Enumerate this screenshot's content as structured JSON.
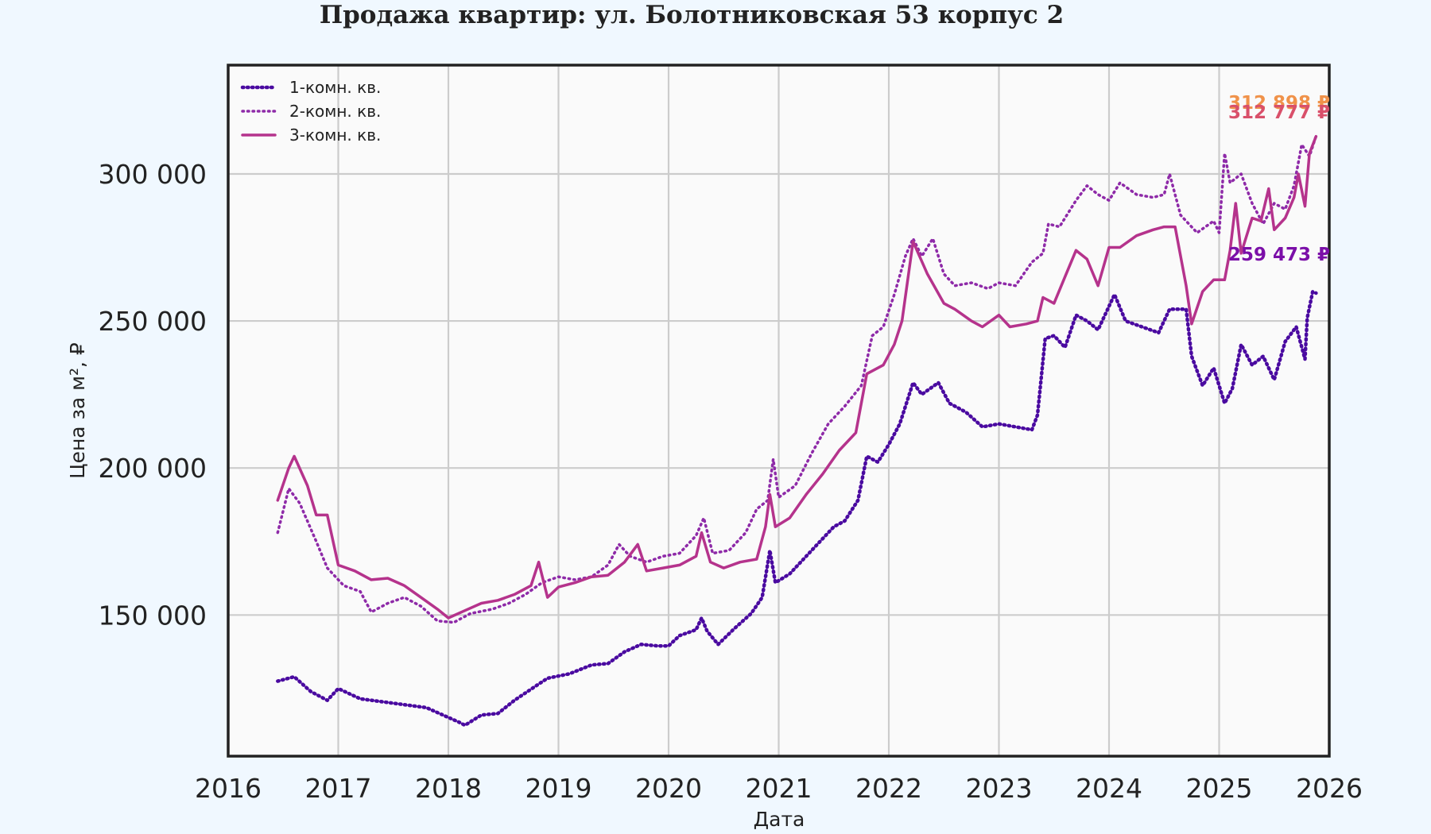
{
  "chart_data": {
    "type": "line",
    "title": "Продажа квартир: ул. Болотниковская 53 корпус 2",
    "xlabel": "Дата",
    "ylabel": "Цена за м², ₽",
    "xlim": [
      2016,
      2026
    ],
    "ylim": [
      102000,
      337000
    ],
    "x_ticks": [
      "2016",
      "2017",
      "2018",
      "2019",
      "2020",
      "2021",
      "2022",
      "2023",
      "2024",
      "2025",
      "2026"
    ],
    "y_ticks": [
      {
        "value": 150000,
        "label": "150 000"
      },
      {
        "value": 200000,
        "label": "200 000"
      },
      {
        "value": 250000,
        "label": "250 000"
      },
      {
        "value": 300000,
        "label": "300 000"
      }
    ],
    "grid": true,
    "legend_position": "top-left",
    "series": [
      {
        "name": "1-комн. кв.",
        "color": "#4a0aa0",
        "style": "dotted-markers",
        "end_label": "259 473 ₽",
        "points": [
          [
            2016.45,
            127500
          ],
          [
            2016.6,
            129000
          ],
          [
            2016.75,
            124000
          ],
          [
            2016.9,
            121000
          ],
          [
            2017.0,
            125000
          ],
          [
            2017.2,
            121500
          ],
          [
            2017.4,
            120500
          ],
          [
            2017.6,
            119500
          ],
          [
            2017.8,
            118500
          ],
          [
            2017.95,
            116000
          ],
          [
            2018.1,
            113500
          ],
          [
            2018.15,
            112500
          ],
          [
            2018.3,
            116000
          ],
          [
            2018.45,
            116500
          ],
          [
            2018.6,
            121000
          ],
          [
            2018.8,
            126000
          ],
          [
            2018.9,
            128500
          ],
          [
            2019.1,
            130000
          ],
          [
            2019.3,
            133000
          ],
          [
            2019.45,
            133500
          ],
          [
            2019.6,
            137500
          ],
          [
            2019.75,
            140000
          ],
          [
            2019.9,
            139500
          ],
          [
            2020.0,
            139500
          ],
          [
            2020.1,
            143000
          ],
          [
            2020.25,
            145000
          ],
          [
            2020.3,
            149000
          ],
          [
            2020.35,
            144500
          ],
          [
            2020.45,
            140000
          ],
          [
            2020.6,
            145500
          ],
          [
            2020.75,
            150500
          ],
          [
            2020.85,
            156000
          ],
          [
            2020.92,
            172000
          ],
          [
            2020.97,
            161000
          ],
          [
            2021.1,
            164000
          ],
          [
            2021.25,
            170000
          ],
          [
            2021.35,
            174000
          ],
          [
            2021.5,
            180000
          ],
          [
            2021.6,
            182000
          ],
          [
            2021.72,
            189000
          ],
          [
            2021.8,
            204000
          ],
          [
            2021.9,
            202000
          ],
          [
            2022.0,
            208000
          ],
          [
            2022.1,
            215000
          ],
          [
            2022.22,
            229000
          ],
          [
            2022.3,
            225000
          ],
          [
            2022.45,
            229000
          ],
          [
            2022.55,
            222000
          ],
          [
            2022.7,
            219000
          ],
          [
            2022.85,
            214000
          ],
          [
            2023.0,
            215000
          ],
          [
            2023.15,
            214000
          ],
          [
            2023.3,
            213000
          ],
          [
            2023.35,
            218000
          ],
          [
            2023.42,
            244000
          ],
          [
            2023.5,
            245000
          ],
          [
            2023.6,
            241000
          ],
          [
            2023.7,
            252000
          ],
          [
            2023.8,
            250000
          ],
          [
            2023.9,
            247000
          ],
          [
            2024.05,
            259000
          ],
          [
            2024.15,
            250000
          ],
          [
            2024.3,
            248000
          ],
          [
            2024.45,
            246000
          ],
          [
            2024.55,
            254000
          ],
          [
            2024.7,
            254000
          ],
          [
            2024.75,
            238000
          ],
          [
            2024.85,
            228000
          ],
          [
            2024.95,
            234000
          ],
          [
            2025.05,
            222000
          ],
          [
            2025.12,
            227000
          ],
          [
            2025.2,
            242000
          ],
          [
            2025.3,
            235000
          ],
          [
            2025.4,
            238000
          ],
          [
            2025.5,
            230000
          ],
          [
            2025.6,
            243000
          ],
          [
            2025.7,
            248000
          ],
          [
            2025.78,
            237000
          ],
          [
            2025.8,
            251000
          ],
          [
            2025.85,
            260000
          ],
          [
            2025.88,
            259473
          ]
        ]
      },
      {
        "name": "2-комн. кв.",
        "color": "#8e2aa8",
        "style": "dotted",
        "end_label": "312 898 ₽",
        "points": [
          [
            2016.45,
            178000
          ],
          [
            2016.55,
            193000
          ],
          [
            2016.65,
            188000
          ],
          [
            2016.8,
            175000
          ],
          [
            2016.9,
            166000
          ],
          [
            2017.05,
            160000
          ],
          [
            2017.2,
            158000
          ],
          [
            2017.3,
            151000
          ],
          [
            2017.45,
            154000
          ],
          [
            2017.6,
            156000
          ],
          [
            2017.75,
            153000
          ],
          [
            2017.9,
            148000
          ],
          [
            2018.05,
            147500
          ],
          [
            2018.2,
            150500
          ],
          [
            2018.4,
            152000
          ],
          [
            2018.55,
            154000
          ],
          [
            2018.7,
            157000
          ],
          [
            2018.85,
            161000
          ],
          [
            2019.0,
            163000
          ],
          [
            2019.15,
            162000
          ],
          [
            2019.3,
            163000
          ],
          [
            2019.45,
            167000
          ],
          [
            2019.55,
            174000
          ],
          [
            2019.65,
            170000
          ],
          [
            2019.8,
            168000
          ],
          [
            2019.95,
            170000
          ],
          [
            2020.1,
            171000
          ],
          [
            2020.25,
            177000
          ],
          [
            2020.32,
            183000
          ],
          [
            2020.4,
            171000
          ],
          [
            2020.55,
            172000
          ],
          [
            2020.7,
            178000
          ],
          [
            2020.8,
            186000
          ],
          [
            2020.9,
            189000
          ],
          [
            2020.95,
            203000
          ],
          [
            2021.0,
            190000
          ],
          [
            2021.15,
            194000
          ],
          [
            2021.3,
            205000
          ],
          [
            2021.45,
            215000
          ],
          [
            2021.6,
            221000
          ],
          [
            2021.75,
            228000
          ],
          [
            2021.85,
            245000
          ],
          [
            2021.95,
            248000
          ],
          [
            2022.05,
            259000
          ],
          [
            2022.15,
            272000
          ],
          [
            2022.22,
            278000
          ],
          [
            2022.3,
            272000
          ],
          [
            2022.4,
            278000
          ],
          [
            2022.5,
            266000
          ],
          [
            2022.6,
            262000
          ],
          [
            2022.75,
            263000
          ],
          [
            2022.9,
            261000
          ],
          [
            2023.0,
            263000
          ],
          [
            2023.15,
            262000
          ],
          [
            2023.3,
            270000
          ],
          [
            2023.4,
            273000
          ],
          [
            2023.45,
            283000
          ],
          [
            2023.55,
            282000
          ],
          [
            2023.7,
            291000
          ],
          [
            2023.8,
            296000
          ],
          [
            2023.9,
            293000
          ],
          [
            2024.0,
            291000
          ],
          [
            2024.1,
            297000
          ],
          [
            2024.25,
            293000
          ],
          [
            2024.4,
            292000
          ],
          [
            2024.5,
            293000
          ],
          [
            2024.55,
            300000
          ],
          [
            2024.65,
            286000
          ],
          [
            2024.8,
            280000
          ],
          [
            2024.95,
            284000
          ],
          [
            2025.0,
            280000
          ],
          [
            2025.05,
            307000
          ],
          [
            2025.1,
            297000
          ],
          [
            2025.2,
            300000
          ],
          [
            2025.3,
            290000
          ],
          [
            2025.4,
            283000
          ],
          [
            2025.5,
            290000
          ],
          [
            2025.6,
            288000
          ],
          [
            2025.68,
            296000
          ],
          [
            2025.75,
            310000
          ],
          [
            2025.82,
            306000
          ],
          [
            2025.88,
            312898
          ]
        ]
      },
      {
        "name": "3-комн. кв.",
        "color": "#b5338c",
        "style": "solid",
        "end_label": "312 777 ₽",
        "points": [
          [
            2016.45,
            189000
          ],
          [
            2016.55,
            200000
          ],
          [
            2016.6,
            204000
          ],
          [
            2016.72,
            194000
          ],
          [
            2016.8,
            184000
          ],
          [
            2016.9,
            184000
          ],
          [
            2017.0,
            167000
          ],
          [
            2017.15,
            165000
          ],
          [
            2017.3,
            162000
          ],
          [
            2017.45,
            162500
          ],
          [
            2017.6,
            160000
          ],
          [
            2017.75,
            156000
          ],
          [
            2017.9,
            152000
          ],
          [
            2018.0,
            149000
          ],
          [
            2018.15,
            151500
          ],
          [
            2018.3,
            154000
          ],
          [
            2018.45,
            155000
          ],
          [
            2018.6,
            157000
          ],
          [
            2018.75,
            160000
          ],
          [
            2018.82,
            168000
          ],
          [
            2018.9,
            156000
          ],
          [
            2019.0,
            159500
          ],
          [
            2019.15,
            161000
          ],
          [
            2019.3,
            163000
          ],
          [
            2019.45,
            163500
          ],
          [
            2019.6,
            168000
          ],
          [
            2019.72,
            174000
          ],
          [
            2019.8,
            165000
          ],
          [
            2019.95,
            166000
          ],
          [
            2020.1,
            167000
          ],
          [
            2020.25,
            170000
          ],
          [
            2020.3,
            178000
          ],
          [
            2020.38,
            168000
          ],
          [
            2020.5,
            166000
          ],
          [
            2020.65,
            168000
          ],
          [
            2020.8,
            169000
          ],
          [
            2020.88,
            180000
          ],
          [
            2020.92,
            191000
          ],
          [
            2020.97,
            180000
          ],
          [
            2021.1,
            183000
          ],
          [
            2021.25,
            191000
          ],
          [
            2021.4,
            198000
          ],
          [
            2021.55,
            206000
          ],
          [
            2021.7,
            212000
          ],
          [
            2021.8,
            232000
          ],
          [
            2021.95,
            235000
          ],
          [
            2022.05,
            242000
          ],
          [
            2022.12,
            250000
          ],
          [
            2022.22,
            277000
          ],
          [
            2022.35,
            266000
          ],
          [
            2022.5,
            256000
          ],
          [
            2022.6,
            254000
          ],
          [
            2022.75,
            250000
          ],
          [
            2022.85,
            248000
          ],
          [
            2023.0,
            252000
          ],
          [
            2023.1,
            248000
          ],
          [
            2023.25,
            249000
          ],
          [
            2023.35,
            250000
          ],
          [
            2023.4,
            258000
          ],
          [
            2023.5,
            256000
          ],
          [
            2023.6,
            265000
          ],
          [
            2023.7,
            274000
          ],
          [
            2023.8,
            271000
          ],
          [
            2023.9,
            262000
          ],
          [
            2024.0,
            275000
          ],
          [
            2024.1,
            275000
          ],
          [
            2024.25,
            279000
          ],
          [
            2024.4,
            281000
          ],
          [
            2024.5,
            282000
          ],
          [
            2024.6,
            282000
          ],
          [
            2024.7,
            262000
          ],
          [
            2024.75,
            249000
          ],
          [
            2024.85,
            260000
          ],
          [
            2024.95,
            264000
          ],
          [
            2025.05,
            264000
          ],
          [
            2025.1,
            274000
          ],
          [
            2025.15,
            290000
          ],
          [
            2025.2,
            273000
          ],
          [
            2025.3,
            285000
          ],
          [
            2025.38,
            284000
          ],
          [
            2025.45,
            295000
          ],
          [
            2025.5,
            281000
          ],
          [
            2025.6,
            285000
          ],
          [
            2025.68,
            292000
          ],
          [
            2025.72,
            300000
          ],
          [
            2025.78,
            289000
          ],
          [
            2025.82,
            307000
          ],
          [
            2025.88,
            312777
          ]
        ]
      }
    ]
  }
}
